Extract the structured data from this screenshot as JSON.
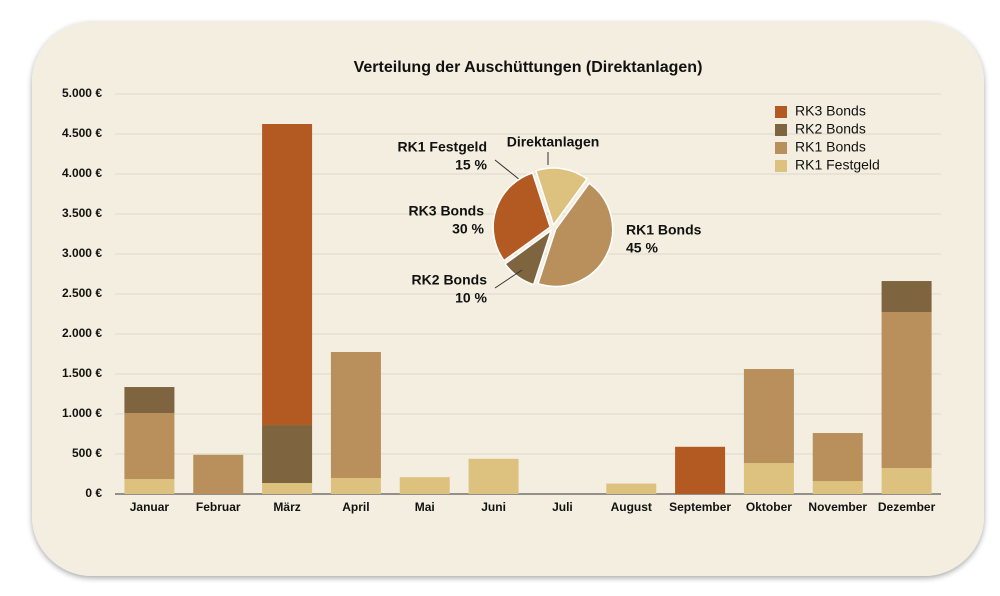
{
  "chart_data": [
    {
      "type": "bar",
      "title": "Verteilung der Auschüttungen (Direktanlagen)",
      "categories": [
        "Januar",
        "Februar",
        "März",
        "April",
        "Mai",
        "Juni",
        "Juli",
        "August",
        "September",
        "Oktober",
        "November",
        "Dezember"
      ],
      "series": [
        {
          "name": "RK3 Bonds",
          "color": "#b35a23",
          "values": [
            0,
            0,
            3763,
            0,
            0,
            0,
            0,
            0,
            590,
            0,
            0,
            0
          ]
        },
        {
          "name": "RK2 Bonds",
          "color": "#7f6440",
          "values": [
            325,
            0,
            725,
            0,
            0,
            0,
            0,
            0,
            0,
            0,
            0,
            387
          ]
        },
        {
          "name": "RK1 Bonds",
          "color": "#b98f5c",
          "values": [
            825,
            490,
            0,
            1575,
            0,
            0,
            0,
            0,
            0,
            1175,
            600,
            1950
          ]
        },
        {
          "name": "RK1 Festgeld",
          "color": "#dcc27e",
          "values": [
            187,
            0,
            137,
            200,
            210,
            440,
            0,
            130,
            0,
            387,
            162,
            325
          ]
        }
      ],
      "ylim": [
        0,
        5000
      ],
      "yticks": [
        {
          "value": 0,
          "label": "0 €"
        },
        {
          "value": 500,
          "label": "500 €"
        },
        {
          "value": 1000,
          "label": "1.000 €"
        },
        {
          "value": 1500,
          "label": "1.500 €"
        },
        {
          "value": 2000,
          "label": "2.000 €"
        },
        {
          "value": 2500,
          "label": "2.500 €"
        },
        {
          "value": 3000,
          "label": "3.000 €"
        },
        {
          "value": 3500,
          "label": "3.500 €"
        },
        {
          "value": 4000,
          "label": "4.000 €"
        },
        {
          "value": 4500,
          "label": "4.500 €"
        },
        {
          "value": 5000,
          "label": "5.000 €"
        }
      ],
      "stacked": true,
      "grid": true,
      "legend": "top-right"
    },
    {
      "type": "pie",
      "title": "Direktanlagen",
      "categories": [
        "RK1 Festgeld",
        "RK1 Bonds",
        "RK2 Bonds",
        "RK3 Bonds"
      ],
      "values": [
        15,
        45,
        10,
        30
      ],
      "value_labels": [
        "15 %",
        "45 %",
        "10 %",
        "30 %"
      ],
      "colors": [
        "#dcc27e",
        "#b98f5c",
        "#7f6440",
        "#b35a23"
      ]
    }
  ]
}
